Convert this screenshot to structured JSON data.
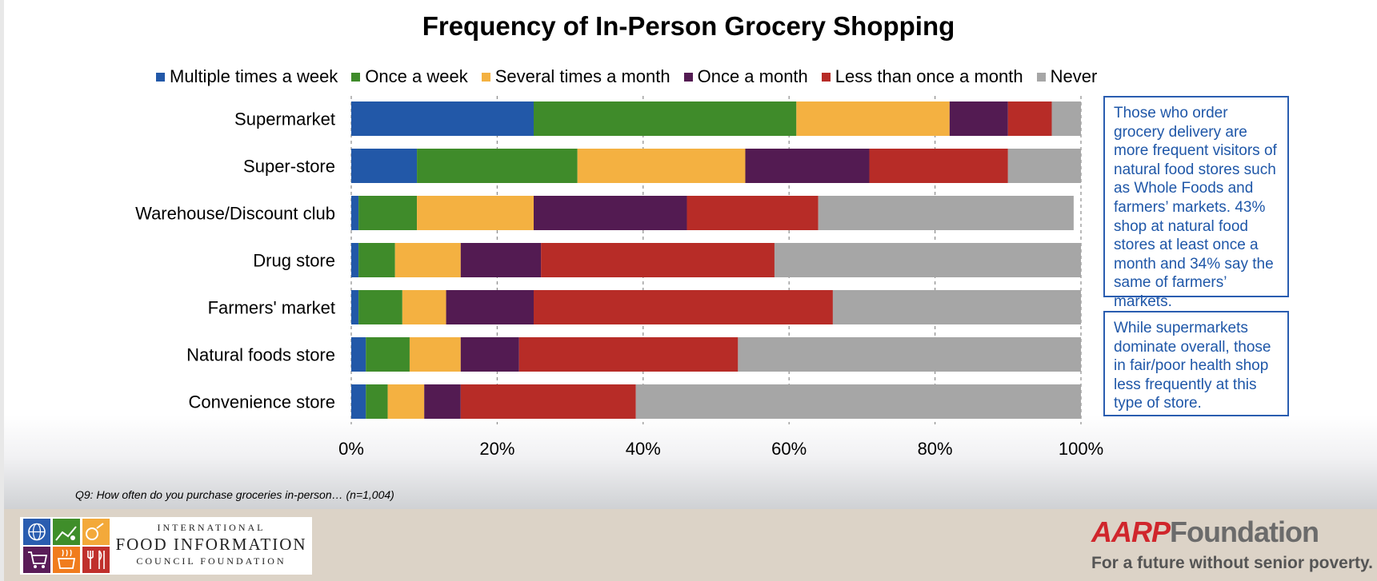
{
  "page": {
    "footnote": "Q9: How often do you purchase groceries in-person… (n=1,004)",
    "notes": [
      "Those who order grocery delivery are more frequent visitors of natural food stores such as Whole Foods and farmers’ markets. 43% shop at natural food stores at least once a month and 34% say the same of farmers’ markets.",
      "While supermarkets dominate overall, those in fair/poor health shop less frequently at this type of store."
    ]
  },
  "logos": {
    "ific": {
      "line1": "INTERNATIONAL",
      "line2": "FOOD INFORMATION",
      "line3": "COUNCIL FOUNDATION",
      "icons": [
        "globe-icon",
        "farm-icon",
        "produce-icon",
        "cart-icon",
        "cooking-pot-icon",
        "utensils-icon"
      ],
      "colors": [
        "#2a5db0",
        "#3f8e2a",
        "#f3a93a",
        "#5a1c58",
        "#f07c1e",
        "#c0302c"
      ]
    },
    "aarp": {
      "brand": "AARP",
      "foundation": "Foundation",
      "tagline": "For a future without senior poverty."
    }
  },
  "chart_data": {
    "type": "bar",
    "orientation": "horizontal",
    "stacked": "100%",
    "title": "Frequency of In-Person Grocery Shopping",
    "xlabel": "",
    "ylabel": "",
    "xlim": [
      0,
      100
    ],
    "x_ticks": [
      "0%",
      "20%",
      "40%",
      "60%",
      "80%",
      "100%"
    ],
    "x_tick_values": [
      0,
      20,
      40,
      60,
      80,
      100
    ],
    "grid": "vertical dashed",
    "legend_position": "top",
    "categories": [
      "Supermarket",
      "Super-store",
      "Warehouse/Discount club",
      "Drug store",
      "Farmers' market",
      "Natural foods store",
      "Convenience store"
    ],
    "series": [
      {
        "name": "Multiple times a week",
        "color": "#2258a8",
        "values": [
          25,
          9,
          1,
          1,
          1,
          2,
          2
        ]
      },
      {
        "name": "Once a week",
        "color": "#3f8b2a",
        "values": [
          36,
          22,
          8,
          5,
          6,
          6,
          3
        ]
      },
      {
        "name": "Several times a month",
        "color": "#f4b141",
        "values": [
          21,
          23,
          16,
          9,
          6,
          7,
          5
        ]
      },
      {
        "name": "Once a month",
        "color": "#531b52",
        "values": [
          8,
          17,
          21,
          11,
          12,
          8,
          5
        ]
      },
      {
        "name": "Less than once a month",
        "color": "#b72c27",
        "values": [
          6,
          19,
          18,
          32,
          41,
          30,
          24
        ]
      },
      {
        "name": "Never",
        "color": "#a6a6a6",
        "values": [
          4,
          10,
          35,
          42,
          34,
          47,
          61
        ]
      }
    ]
  }
}
